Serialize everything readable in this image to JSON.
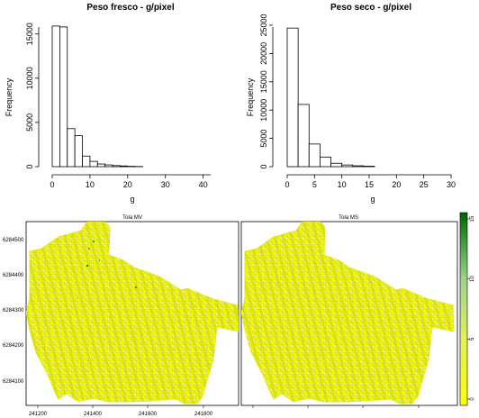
{
  "chart_data": [
    {
      "type": "bar",
      "title": "Peso fresco -  g/pixel",
      "xlabel": "g",
      "ylabel": "Frequency",
      "xticks": [
        "0",
        "10",
        "20",
        "30",
        "40"
      ],
      "yticks": [
        "0",
        "5000",
        "10000",
        "15000"
      ],
      "xlim": [
        0,
        42
      ],
      "ylim": [
        0,
        16500
      ],
      "bin_width": 2,
      "bin_starts": [
        0,
        2,
        4,
        6,
        8,
        10,
        12,
        14,
        16,
        18,
        20,
        22
      ],
      "values": [
        15900,
        15800,
        4300,
        3500,
        1200,
        600,
        300,
        200,
        120,
        80,
        40,
        20
      ],
      "axis_max_label": 40
    },
    {
      "type": "bar",
      "title": "Peso seco -  g/pixel",
      "xlabel": "g",
      "ylabel": "Frequency",
      "xticks": [
        "0",
        "5",
        "10",
        "15",
        "20",
        "25",
        "30"
      ],
      "yticks": [
        "0",
        "5000",
        "10000",
        "15000",
        "20000",
        "25000"
      ],
      "xlim": [
        0,
        30
      ],
      "ylim": [
        0,
        25000
      ],
      "bin_width": 2,
      "bin_starts": [
        0,
        2,
        4,
        6,
        8,
        10,
        12,
        14
      ],
      "values": [
        24500,
        11000,
        4000,
        1700,
        600,
        300,
        150,
        80
      ],
      "axis_max_label": 30
    },
    {
      "type": "heatmap",
      "title": "Tola MV",
      "yticks": [
        "6284500",
        "6284400",
        "6284300",
        "6284200",
        "6284100"
      ],
      "xticks": [
        "241200",
        "241400",
        "241600",
        "241800"
      ]
    },
    {
      "type": "heatmap",
      "title": "Tola MS",
      "colorbar_ticks": [
        "0",
        "5",
        "10",
        "15"
      ],
      "colorbar_range": [
        0,
        15
      ],
      "colors": {
        "low": "#ffff00",
        "high": "#006400"
      }
    }
  ]
}
